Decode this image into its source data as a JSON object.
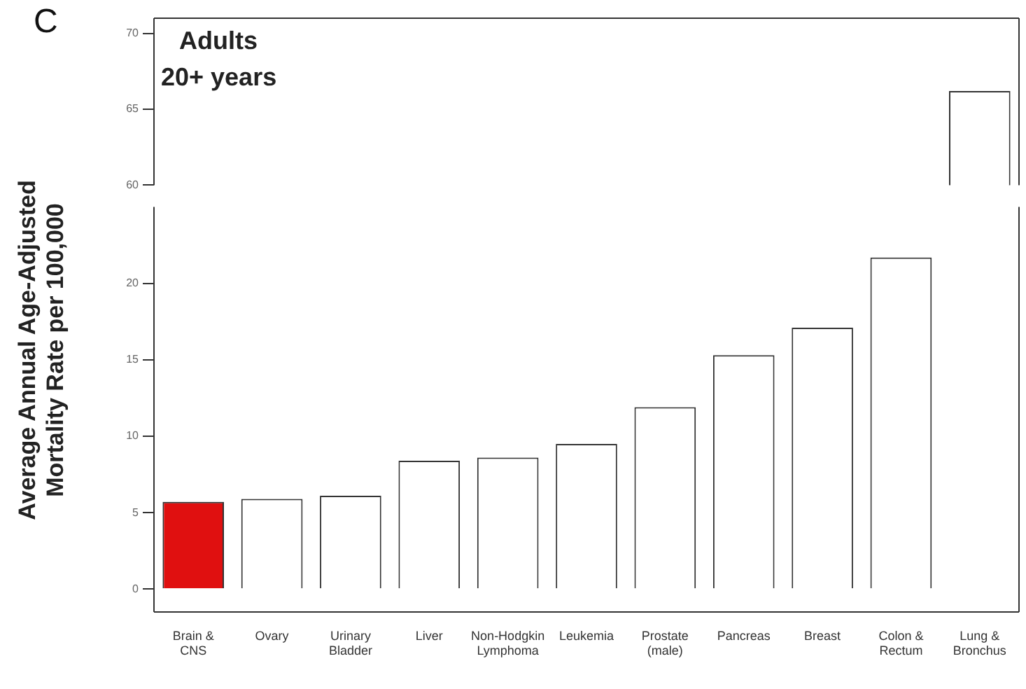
{
  "chart_data": [
    {
      "type": "bar",
      "title": "Adults",
      "subtitle": "20+ years",
      "annotations": [
        "C"
      ],
      "categories": [
        null,
        null,
        null,
        null,
        null,
        null,
        null,
        null,
        null,
        null,
        null
      ],
      "values": [
        null,
        null,
        null,
        null,
        null,
        null,
        null,
        null,
        null,
        null,
        66.2
      ],
      "colors": [
        "#e01010",
        "#ffffff",
        "#ffffff",
        "#ffffff",
        "#ffffff",
        "#ffffff",
        "#ffffff",
        "#ffffff",
        "#ffffff",
        "#ffffff",
        "#ffffff"
      ],
      "ylim": [
        60,
        71
      ],
      "yticks": [
        60,
        65,
        70
      ],
      "tick_labels": "y",
      "grid": false,
      "legend": false
    },
    {
      "type": "bar",
      "ylabel": "Average Annual Age-Adjusted\nMortality Rate per 100,000",
      "categories": [
        "Brain & CNS",
        "Ovary",
        "Urinary Bladder",
        "Liver",
        "Non-Hodgkin Lymphoma",
        "Leukemia",
        "Prostate (male)",
        "Pancreas",
        "Breast",
        "Colon & Rectum",
        "Lung & Bronchus"
      ],
      "values": [
        5.7,
        5.9,
        6.1,
        8.4,
        8.6,
        9.5,
        11.9,
        15.3,
        17.1,
        21.7,
        null
      ],
      "colors": [
        "#e01010",
        "#ffffff",
        "#ffffff",
        "#ffffff",
        "#ffffff",
        "#ffffff",
        "#ffffff",
        "#ffffff",
        "#ffffff",
        "#ffffff",
        "#ffffff"
      ],
      "ylim": [
        -1.5,
        25
      ],
      "yticks": [
        0,
        5,
        10,
        15,
        20
      ],
      "grid": false,
      "legend": false
    }
  ]
}
